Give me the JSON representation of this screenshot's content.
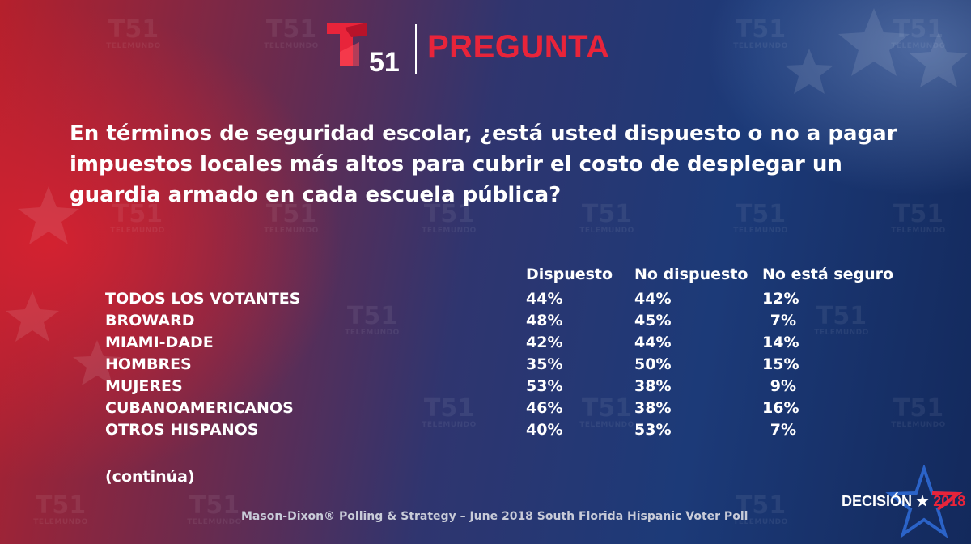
{
  "header": {
    "logo_number": "51",
    "title": "PREGUNTA"
  },
  "watermark": {
    "number": "51",
    "brand": "TELEMUNDO"
  },
  "question": "En términos de seguridad escolar, ¿está usted dispuesto o no a pagar impuestos locales más altos para cubrir el costo de desplegar un guardia armado en cada escuela pública?",
  "table": {
    "columns": [
      "Dispuesto",
      "No dispuesto",
      "No está seguro"
    ],
    "rows": [
      {
        "label": "TODOS LOS VOTANTES",
        "values": [
          "44%",
          "44%",
          "12%"
        ]
      },
      {
        "label": "BROWARD",
        "values": [
          "48%",
          "45%",
          "7%"
        ]
      },
      {
        "label": "MIAMI-DADE",
        "values": [
          "42%",
          "44%",
          "14%"
        ]
      },
      {
        "label": "HOMBRES",
        "values": [
          "35%",
          "50%",
          "15%"
        ]
      },
      {
        "label": "MUJERES",
        "values": [
          "53%",
          "38%",
          "9%"
        ]
      },
      {
        "label": "CUBANOAMERICANOS",
        "values": [
          "46%",
          "38%",
          "16%"
        ]
      },
      {
        "label": "OTROS HISPANOS",
        "values": [
          "40%",
          "53%",
          "7%"
        ]
      }
    ]
  },
  "continued": "(continúa)",
  "footer": "Mason-Dixon® Polling & Strategy – June 2018 South Florida Hispanic Voter Poll",
  "badge": {
    "word": "DECISIÓN",
    "star": "★",
    "year": "2018"
  },
  "colors": {
    "brand_red": "#e8243a",
    "text_white": "#ffffff",
    "footer_gray": "#c8cbd8"
  }
}
